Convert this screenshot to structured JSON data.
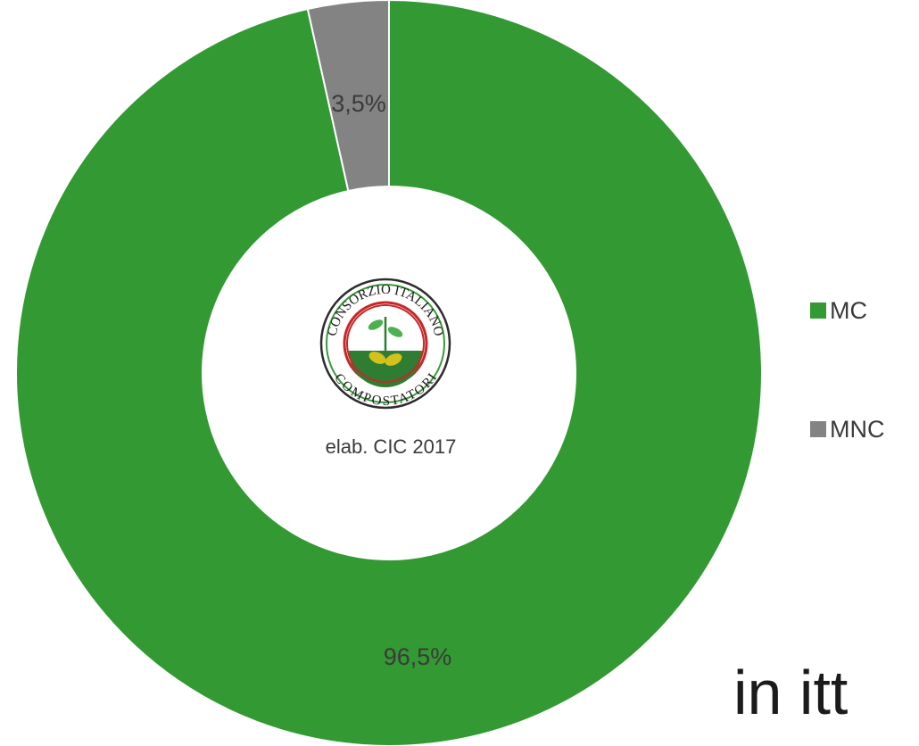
{
  "chart_data": {
    "type": "pie",
    "style": "donut",
    "title": "",
    "categories": [
      "MC",
      "MNC"
    ],
    "values": [
      96.5,
      3.5
    ],
    "value_labels": [
      "96,5%",
      "3,5%"
    ],
    "unit": "%",
    "legend_position": "right",
    "colors": [
      "#339933",
      "#838383"
    ],
    "center_note": "elab. CIC 2017"
  },
  "logo": {
    "name": "consorzio-italiano-compostatori-seal",
    "text_top": "CONSORZIO ITALIANO",
    "text_bottom": "COMPOSTATORI"
  },
  "bottom_text": "in itt"
}
